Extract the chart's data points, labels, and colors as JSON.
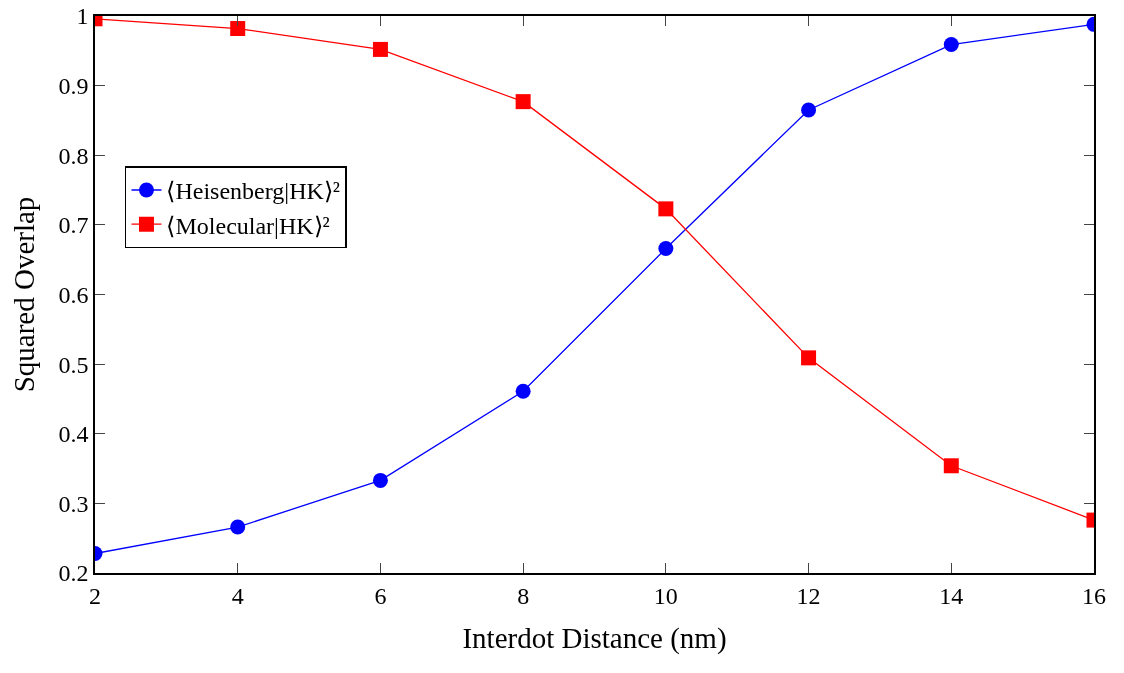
{
  "chart_data": {
    "type": "line",
    "xlabel": "Interdot Distance (nm)",
    "ylabel": "Squared Overlap",
    "x": [
      2,
      4,
      6,
      8,
      10,
      12,
      14,
      16
    ],
    "series": [
      {
        "name": "⟨Heisenberg|HK⟩²",
        "color": "#0000ff",
        "marker": "circle",
        "values": [
          0.228,
          0.266,
          0.333,
          0.461,
          0.666,
          0.865,
          0.959,
          0.988
        ]
      },
      {
        "name": "⟨Molecular|HK⟩²",
        "color": "#ff0000",
        "marker": "square",
        "values": [
          0.996,
          0.982,
          0.952,
          0.877,
          0.723,
          0.509,
          0.354,
          0.276
        ]
      }
    ],
    "xlim": [
      2,
      16
    ],
    "xticks": [
      2,
      4,
      6,
      8,
      10,
      12,
      14,
      16
    ],
    "ylim": [
      0.2,
      1
    ],
    "yticks": [
      0.2,
      0.3,
      0.4,
      0.5,
      0.6,
      0.7,
      0.8,
      0.9,
      1
    ],
    "grid": false,
    "legend": "top left",
    "line_style": "solid"
  }
}
